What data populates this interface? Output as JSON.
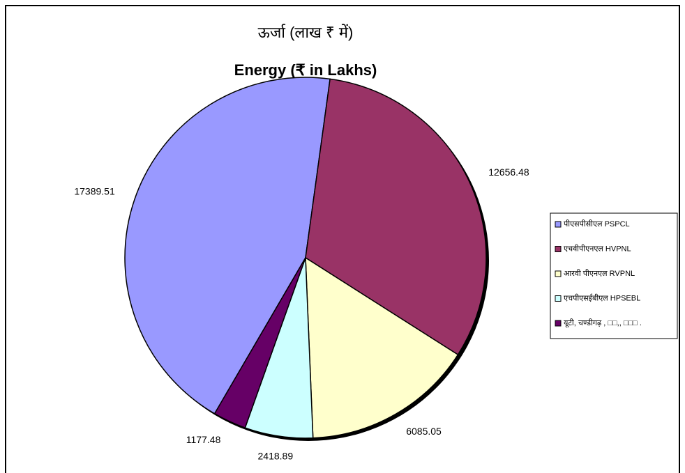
{
  "chart_data": {
    "type": "pie",
    "title": "ऊर्जा (लाख ₹ में)",
    "subtitle": "Energy (₹ in Lakhs)",
    "categories": [
      "पीएसपीसीएल PSPCL",
      "एचवीपीएनएल HVPNL",
      "आरवी पीएनएल RVPNL",
      "एचपीएसईबीएल HPSEBL",
      "यूटी, चण्डीगढ़ , □□,, □□□ ."
    ],
    "values": [
      17389.51,
      12656.48,
      6085.05,
      2418.89,
      1177.48
    ],
    "colors": [
      "#9999ff",
      "#993366",
      "#ffffcc",
      "#ccffff",
      "#660066"
    ],
    "legend": "right"
  }
}
